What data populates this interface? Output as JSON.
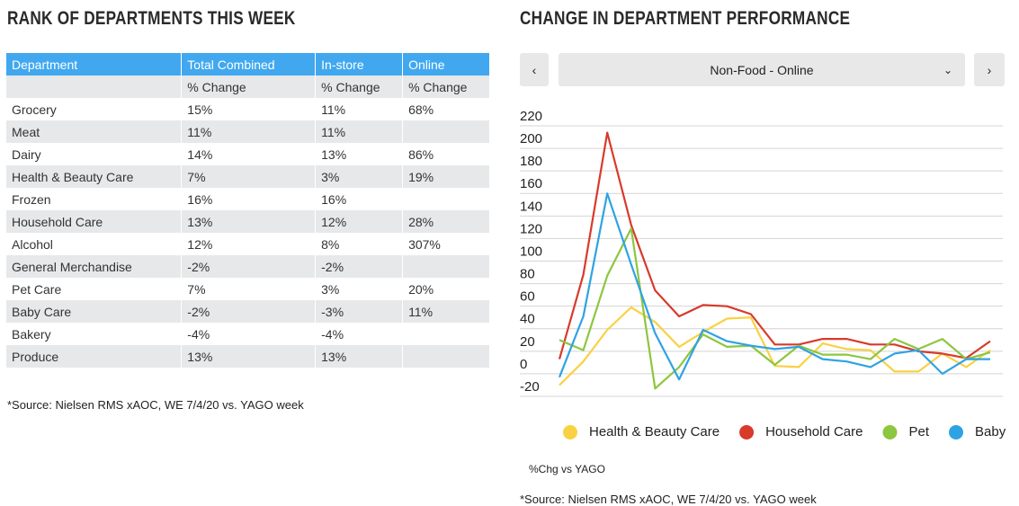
{
  "table_title": "RANK OF DEPARTMENTS THIS WEEK",
  "table": {
    "header": [
      "Department",
      "Total Combined",
      "In-store",
      "Online"
    ],
    "subheader": [
      "% Change",
      "% Change",
      "% Change"
    ],
    "rows": [
      [
        "Grocery",
        "15%",
        "11%",
        "68%"
      ],
      [
        "Meat",
        "11%",
        "11%",
        null
      ],
      [
        "Dairy",
        "14%",
        "13%",
        "86%"
      ],
      [
        "Health & Beauty Care",
        "7%",
        "3%",
        "19%"
      ],
      [
        "Frozen",
        "16%",
        "16%",
        null
      ],
      [
        "Household Care",
        "13%",
        "12%",
        "28%"
      ],
      [
        "Alcohol",
        "12%",
        "8%",
        "307%"
      ],
      [
        "General Merchandise",
        "-2%",
        "-2%",
        null
      ],
      [
        "Pet Care",
        "7%",
        "3%",
        "20%"
      ],
      [
        "Baby Care",
        "-2%",
        "-3%",
        "11%"
      ],
      [
        "Bakery",
        "-4%",
        "-4%",
        null
      ],
      [
        "Produce",
        "13%",
        "13%",
        null
      ]
    ]
  },
  "table_source": "*Source: Nielsen RMS xAOC, WE 7/4/20 vs. YAGO week",
  "selector": "Non-Food - Online",
  "chart_data": {
    "type": "line",
    "title": "CHANGE IN DEPARTMENT PERFORMANCE",
    "categories": [
      null,
      null,
      null,
      null,
      null,
      null,
      null,
      null,
      null,
      null,
      null,
      null,
      null,
      null,
      null,
      null,
      null,
      null,
      null
    ],
    "series": [
      {
        "name": "Health & Beauty Care",
        "color": "#f9d142",
        "values": [
          -18,
          3,
          31,
          51,
          38,
          16,
          29,
          41,
          42,
          -1,
          -2,
          19,
          14,
          13,
          -6,
          -6,
          10,
          -2,
          13
        ]
      },
      {
        "name": "Household Care",
        "color": "#d83a2b",
        "values": [
          5,
          80,
          206,
          124,
          66,
          43,
          53,
          52,
          45,
          18,
          18,
          23,
          23,
          18,
          18,
          12,
          10,
          6,
          21
        ]
      },
      {
        "name": "Pet",
        "color": "#8dc63f",
        "values": [
          22,
          13,
          79,
          121,
          -21,
          -2,
          27,
          16,
          17,
          0,
          17,
          9,
          9,
          5,
          23,
          14,
          23,
          5,
          11
        ]
      },
      {
        "name": "Baby",
        "color": "#2ea3e3",
        "values": [
          -11,
          43,
          152,
          89,
          28,
          -13,
          31,
          21,
          17,
          14,
          16,
          5,
          3,
          -2,
          10,
          13,
          -8,
          5,
          5
        ]
      }
    ],
    "ylim": [
      -20,
      220
    ],
    "yticks": [
      -20,
      0,
      20,
      40,
      60,
      80,
      100,
      120,
      140,
      160,
      180,
      200,
      220
    ],
    "grid": true,
    "legend": "bottom",
    "note": "%Chg vs YAGO",
    "source": "*Source: Nielsen RMS xAOC, WE 7/4/20 vs. YAGO week"
  }
}
